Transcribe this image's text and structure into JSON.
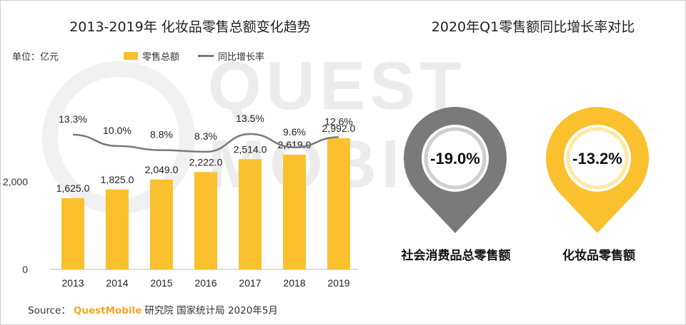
{
  "watermark": "QUEST MOBILE",
  "left_title": "2013-2019年 化妆品零售总额变化趋势",
  "right_title": "2020年Q1零售额同比增长率对比",
  "unit_label": "单位：亿元",
  "legend": {
    "bar": "零售总额",
    "line": "同比增长率"
  },
  "source": {
    "prefix": "Source：",
    "brand": "QuestMobile",
    "rest": "研究院 国家统计局 2020年5月"
  },
  "colors": {
    "bar": "#fbc02d",
    "line": "#7a7a7a",
    "pin_dark": "#7a7a7a",
    "pin_gold": "#fbc02d"
  },
  "chart_data": [
    {
      "type": "bar",
      "title": "2013-2019年 化妆品零售总额变化趋势",
      "categories": [
        "2013",
        "2014",
        "2015",
        "2016",
        "2017",
        "2018",
        "2019"
      ],
      "series": [
        {
          "name": "零售总额",
          "type": "bar",
          "values": [
            1625.0,
            1825.0,
            2049.0,
            2222.0,
            2514.0,
            2619.0,
            2992.0
          ],
          "labels": [
            "1,625.0",
            "1,825.0",
            "2,049.0",
            "2,222.0",
            "2,514.0",
            "2,619.0",
            "2,992.0"
          ]
        },
        {
          "name": "同比增长率",
          "type": "line",
          "values": [
            13.3,
            10.0,
            8.8,
            8.3,
            13.5,
            9.6,
            12.6
          ],
          "labels": [
            "13.3%",
            "10.0%",
            "8.8%",
            "8.3%",
            "13.5%",
            "9.6%",
            "12.6%"
          ]
        }
      ],
      "yticks": [
        0,
        2000
      ],
      "ytick_labels": [
        "0",
        "2,000"
      ],
      "ylim": [
        0,
        4000
      ],
      "y2lim": [
        0,
        45
      ]
    },
    {
      "type": "table",
      "title": "2020年Q1零售额同比增长率对比",
      "categories": [
        "社会消费品总零售额",
        "化妆品零售额"
      ],
      "values": [
        -19.0,
        -13.2
      ],
      "labels": [
        "-19.0%",
        "-13.2%"
      ]
    }
  ]
}
